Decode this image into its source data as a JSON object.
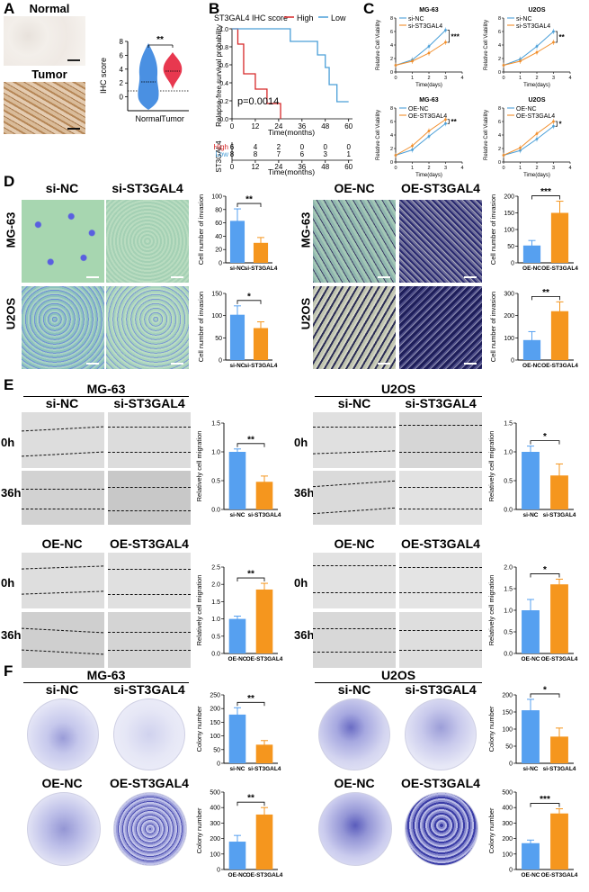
{
  "panels": {
    "A": "A",
    "B": "B",
    "C": "C",
    "D": "D",
    "E": "E",
    "F": "F"
  },
  "panelA": {
    "normal_label": "Normal",
    "tumor_label": "Tumor",
    "chart_data": {
      "type": "violin",
      "ylabel": "IHC score",
      "categories": [
        "Normal",
        "Tumor"
      ],
      "yticks": [
        "0",
        "2",
        "4",
        "6",
        "8"
      ],
      "ylim": [
        -2,
        8
      ],
      "medians": [
        2,
        4
      ],
      "significance": "**",
      "colors": [
        "#4a90e2",
        "#e8384f"
      ]
    }
  },
  "panelB": {
    "title": "ST3GAL4 IHC score",
    "legend": [
      {
        "name": "High",
        "color": "#d62728"
      },
      {
        "name": "Low",
        "color": "#4a9fd8"
      }
    ],
    "pvalue": "p=0.0014",
    "chart_data": {
      "type": "line",
      "ylabel": "Relapse-free survival probability",
      "xlabel": "Time(months)",
      "xticks": [
        "0",
        "12",
        "24",
        "36",
        "48",
        "60"
      ],
      "yticks": [
        "0.0",
        "0.2",
        "0.4",
        "0.6",
        "0.8",
        "1.0"
      ],
      "xlim": [
        0,
        62
      ],
      "ylim": [
        0,
        1.0
      ],
      "series": [
        {
          "name": "High",
          "color": "#d62728",
          "steps": [
            [
              0,
              1.0
            ],
            [
              3,
              1.0
            ],
            [
              3,
              0.83
            ],
            [
              6,
              0.83
            ],
            [
              6,
              0.5
            ],
            [
              12,
              0.5
            ],
            [
              12,
              0.33
            ],
            [
              18,
              0.33
            ],
            [
              18,
              0.17
            ],
            [
              25,
              0.17
            ],
            [
              25,
              0.0
            ]
          ]
        },
        {
          "name": "Low",
          "color": "#4a9fd8",
          "steps": [
            [
              0,
              1.0
            ],
            [
              30,
              1.0
            ],
            [
              30,
              0.86
            ],
            [
              44,
              0.86
            ],
            [
              44,
              0.71
            ],
            [
              48,
              0.71
            ],
            [
              48,
              0.57
            ],
            [
              50,
              0.57
            ],
            [
              50,
              0.38
            ],
            [
              54,
              0.38
            ],
            [
              54,
              0.19
            ],
            [
              60,
              0.19
            ]
          ]
        }
      ]
    },
    "risk_table": {
      "gene": "ST3GAL4",
      "xlabel": "Time(months)",
      "rows": [
        {
          "name": "High",
          "color": "#d62728",
          "values": [
            "6",
            "4",
            "2",
            "0",
            "0",
            "0"
          ]
        },
        {
          "name": "Low",
          "color": "#4a9fd8",
          "values": [
            "8",
            "8",
            "7",
            "6",
            "3",
            "1"
          ]
        }
      ]
    }
  },
  "panelC": {
    "charts": [
      {
        "title": "MG-63",
        "legend": [
          "si-NC",
          "si-ST3GAL4"
        ],
        "sig": "***",
        "colors": [
          "#4a9fd8",
          "#f28e2b"
        ],
        "type": "line",
        "xlabel": "Time(days)",
        "ylabel": "Relative Cell Viability",
        "xticks": [
          "0",
          "1",
          "2",
          "3",
          "4"
        ],
        "yticks": [
          "0",
          "2",
          "4",
          "6",
          "8"
        ],
        "ylim": [
          0,
          8
        ],
        "x": [
          0,
          1,
          2,
          3
        ],
        "series": [
          {
            "name": "si-NC",
            "values": [
              1,
              1.8,
              3.8,
              6.2
            ]
          },
          {
            "name": "si-ST3GAL4",
            "values": [
              1,
              1.6,
              2.8,
              4.4
            ]
          }
        ]
      },
      {
        "title": "U2OS",
        "legend": [
          "si-NC",
          "si-ST3GAL4"
        ],
        "sig": "**",
        "colors": [
          "#4a9fd8",
          "#f28e2b"
        ],
        "type": "line",
        "xlabel": "Time(days)",
        "ylabel": "Relative Cell Viability",
        "xticks": [
          "0",
          "1",
          "2",
          "3",
          "4"
        ],
        "yticks": [
          "0",
          "2",
          "4",
          "6",
          "8"
        ],
        "ylim": [
          0,
          8
        ],
        "x": [
          0,
          1,
          2,
          3
        ],
        "series": [
          {
            "name": "si-NC",
            "values": [
              1,
              1.9,
              3.8,
              6.0
            ]
          },
          {
            "name": "si-ST3GAL4",
            "values": [
              1,
              1.6,
              2.9,
              4.4
            ]
          }
        ]
      },
      {
        "title": "MG-63",
        "legend": [
          "OE-NC",
          "OE-ST3GAL4"
        ],
        "sig": "**",
        "colors": [
          "#4a9fd8",
          "#f28e2b"
        ],
        "type": "line",
        "xlabel": "Time(days)",
        "ylabel": "Relative Cell Viability",
        "xticks": [
          "0",
          "1",
          "2",
          "3",
          "4"
        ],
        "yticks": [
          "0",
          "2",
          "4",
          "6",
          "8"
        ],
        "ylim": [
          0,
          8
        ],
        "x": [
          0,
          1,
          2,
          3
        ],
        "series": [
          {
            "name": "OE-NC",
            "values": [
              1,
              1.8,
              3.8,
              5.7
            ]
          },
          {
            "name": "OE-ST3GAL4",
            "values": [
              1,
              2.4,
              4.6,
              6.3
            ]
          }
        ]
      },
      {
        "title": "U2OS",
        "legend": [
          "OE-NC",
          "OE-ST3GAL4"
        ],
        "sig": "*",
        "colors": [
          "#4a9fd8",
          "#f28e2b"
        ],
        "type": "line",
        "xlabel": "Time(days)",
        "ylabel": "Relative Cell Viability",
        "xticks": [
          "0",
          "1",
          "2",
          "3",
          "4"
        ],
        "yticks": [
          "0",
          "2",
          "4",
          "6",
          "8"
        ],
        "ylim": [
          0,
          8
        ],
        "x": [
          0,
          1,
          2,
          3
        ],
        "series": [
          {
            "name": "OE-NC",
            "values": [
              1,
              1.7,
              3.4,
              5.3
            ]
          },
          {
            "name": "OE-ST3GAL4",
            "values": [
              1,
              2.1,
              4.2,
              6.0
            ]
          }
        ]
      }
    ]
  },
  "panelD": {
    "headers": [
      "si-NC",
      "si-ST3GAL4",
      "OE-NC",
      "OE-ST3GAL4"
    ],
    "rows": [
      "MG-63",
      "U2OS",
      "MG-63",
      "U2OS"
    ],
    "charts": [
      {
        "type": "bar",
        "ylabel": "Cell number of invasion",
        "categories": [
          "si-NC",
          "si-ST3GAL4"
        ],
        "values": [
          63,
          30
        ],
        "errors": [
          18,
          8
        ],
        "ylim": [
          0,
          100
        ],
        "yticks": [
          "0",
          "20",
          "40",
          "60",
          "80",
          "100"
        ],
        "sig": "**"
      },
      {
        "type": "bar",
        "ylabel": "Cell number of invasion",
        "categories": [
          "si-NC",
          "si-ST3GAL4"
        ],
        "values": [
          102,
          72
        ],
        "errors": [
          20,
          14
        ],
        "ylim": [
          0,
          150
        ],
        "yticks": [
          "0",
          "50",
          "100",
          "150"
        ],
        "sig": "*"
      },
      {
        "type": "bar",
        "ylabel": "Cell number of invasion",
        "categories": [
          "OE-NC",
          "OE-ST3GAL4"
        ],
        "values": [
          52,
          150
        ],
        "errors": [
          15,
          35
        ],
        "ylim": [
          0,
          200
        ],
        "yticks": [
          "0",
          "50",
          "100",
          "150",
          "200"
        ],
        "sig": "***"
      },
      {
        "type": "bar",
        "ylabel": "Cell number of invasion",
        "categories": [
          "OE-NC",
          "OE-ST3GAL4"
        ],
        "values": [
          90,
          220
        ],
        "errors": [
          38,
          42
        ],
        "ylim": [
          0,
          300
        ],
        "yticks": [
          "0",
          "100",
          "200",
          "300"
        ],
        "sig": "**"
      }
    ]
  },
  "panelE": {
    "cell_lines": [
      "MG-63",
      "U2OS"
    ],
    "headers_si": [
      "si-NC",
      "si-ST3GAL4"
    ],
    "headers_oe": [
      "OE-NC",
      "OE-ST3GAL4"
    ],
    "times": [
      "0h",
      "36h"
    ],
    "charts": [
      {
        "type": "bar",
        "ylabel": "Relatively cell migration",
        "categories": [
          "si-NC",
          "si-ST3GAL4"
        ],
        "values": [
          1.0,
          0.48
        ],
        "errors": [
          0.05,
          0.1
        ],
        "ylim": [
          0,
          1.5
        ],
        "yticks": [
          "0.0",
          "0.5",
          "1.0",
          "1.5"
        ],
        "sig": "**"
      },
      {
        "type": "bar",
        "ylabel": "Relatively cell migration",
        "categories": [
          "si-NC",
          "si-ST3GAL4"
        ],
        "values": [
          1.0,
          0.59
        ],
        "errors": [
          0.1,
          0.2
        ],
        "ylim": [
          0,
          1.5
        ],
        "yticks": [
          "0.0",
          "0.5",
          "1.0",
          "1.5"
        ],
        "sig": "*"
      },
      {
        "type": "bar",
        "ylabel": "Relatively cell migration",
        "categories": [
          "OE-NC",
          "OE-ST3GAL4"
        ],
        "values": [
          1.0,
          1.85
        ],
        "errors": [
          0.08,
          0.18
        ],
        "ylim": [
          0,
          2.5
        ],
        "yticks": [
          "0.0",
          "0.5",
          "1.0",
          "1.5",
          "2.0",
          "2.5"
        ],
        "sig": "**"
      },
      {
        "type": "bar",
        "ylabel": "Relatively cell migration",
        "categories": [
          "OE-NC",
          "OE-ST3GAL4"
        ],
        "values": [
          1.0,
          1.6
        ],
        "errors": [
          0.25,
          0.12
        ],
        "ylim": [
          0,
          2.0
        ],
        "yticks": [
          "0.0",
          "0.5",
          "1.0",
          "1.5",
          "2.0"
        ],
        "sig": "*"
      }
    ]
  },
  "panelF": {
    "cell_lines": [
      "MG-63",
      "U2OS"
    ],
    "headers_si": [
      "si-NC",
      "si-ST3GAL4"
    ],
    "headers_oe": [
      "OE-NC",
      "OE-ST3GAL4"
    ],
    "charts": [
      {
        "type": "bar",
        "ylabel": "Colony number",
        "categories": [
          "si-NC",
          "si-ST3GAL4"
        ],
        "values": [
          178,
          68
        ],
        "errors": [
          25,
          15
        ],
        "ylim": [
          0,
          250
        ],
        "yticks": [
          "0",
          "50",
          "100",
          "150",
          "200",
          "250"
        ],
        "sig": "**"
      },
      {
        "type": "bar",
        "ylabel": "Colony number",
        "categories": [
          "si-NC",
          "si-ST3GAL4"
        ],
        "values": [
          155,
          78
        ],
        "errors": [
          32,
          25
        ],
        "ylim": [
          0,
          200
        ],
        "yticks": [
          "0",
          "50",
          "100",
          "150",
          "200"
        ],
        "sig": "*"
      },
      {
        "type": "bar",
        "ylabel": "Colony number",
        "categories": [
          "OE-NC",
          "OE-ST3GAL4"
        ],
        "values": [
          180,
          355
        ],
        "errors": [
          40,
          45
        ],
        "ylim": [
          0,
          500
        ],
        "yticks": [
          "0",
          "100",
          "200",
          "300",
          "400",
          "500"
        ],
        "sig": "**"
      },
      {
        "type": "bar",
        "ylabel": "Colony number",
        "categories": [
          "OE-NC",
          "OE-ST3GAL4"
        ],
        "values": [
          170,
          362
        ],
        "errors": [
          20,
          30
        ],
        "ylim": [
          0,
          500
        ],
        "yticks": [
          "0",
          "100",
          "200",
          "300",
          "400",
          "500"
        ],
        "sig": "***"
      }
    ]
  },
  "colors": {
    "blue": "#56a0f0",
    "orange": "#f5961e",
    "violin_blue": "#4a90e2",
    "violin_red": "#e8384f"
  }
}
